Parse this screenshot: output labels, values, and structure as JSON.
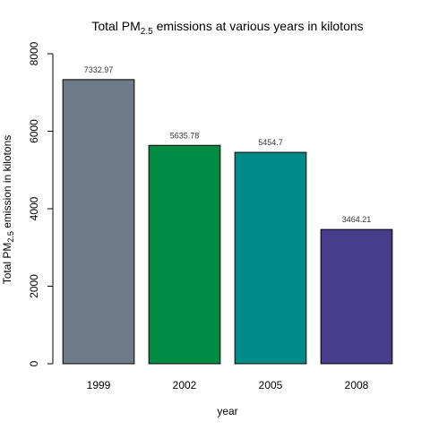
{
  "chart_data": {
    "type": "bar",
    "title": {
      "prefix": "Total PM",
      "subscript": "2.5",
      "suffix": " emissions at various years in kilotons"
    },
    "xlabel": "year",
    "ylabel": {
      "prefix": "Total PM",
      "subscript": "2.5",
      "suffix": " emission in kilotons"
    },
    "categories": [
      "1999",
      "2002",
      "2005",
      "2008"
    ],
    "values": [
      7332.97,
      5635.78,
      5454.7,
      3464.21
    ],
    "value_labels": [
      "7332.97",
      "5635.78",
      "5454.7",
      "3464.21"
    ],
    "colors": [
      "#6e7b8b",
      "#008b45",
      "#008b8b",
      "#483d8b"
    ],
    "ylim": [
      0,
      8000
    ],
    "yticks": [
      0,
      2000,
      4000,
      6000,
      8000
    ],
    "grid": false,
    "legend": "none"
  }
}
